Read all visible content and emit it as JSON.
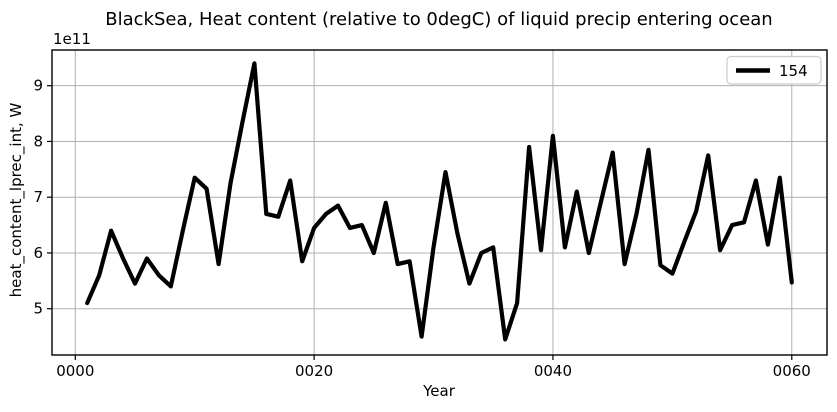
{
  "chart_data": {
    "type": "line",
    "title": "BlackSea, Heat content (relative to 0degC) of liquid precip entering ocean",
    "xlabel": "Year",
    "ylabel": "heat_content_lprec_int, W",
    "y_offset_label": "1e11",
    "y_unit_factor": 100000000000.0,
    "grid": true,
    "legend_position": "upper right",
    "xlim": [
      -1.95,
      62.95
    ],
    "ylim": [
      4.17,
      9.64
    ],
    "xticks": {
      "values": [
        0,
        20,
        40,
        60
      ],
      "labels": [
        "0000",
        "0020",
        "0040",
        "0060"
      ]
    },
    "yticks": {
      "values": [
        5,
        6,
        7,
        8,
        9
      ],
      "labels": [
        "5",
        "6",
        "7",
        "8",
        "9"
      ]
    },
    "style": {
      "line_color": "#000000",
      "grid_color": "#b0b0b0",
      "background_color": "#ffffff",
      "legend_border_color": "#cccccc"
    },
    "series": [
      {
        "name": "154",
        "x": [
          1,
          2,
          3,
          4,
          5,
          6,
          7,
          8,
          9,
          10,
          11,
          12,
          13,
          14,
          15,
          16,
          17,
          18,
          19,
          20,
          21,
          22,
          23,
          24,
          25,
          26,
          27,
          28,
          29,
          30,
          31,
          32,
          33,
          34,
          35,
          36,
          37,
          38,
          39,
          40,
          41,
          42,
          43,
          44,
          45,
          46,
          47,
          48,
          49,
          50,
          51,
          52,
          53,
          54,
          55,
          56,
          57,
          58,
          59,
          60
        ],
        "y": [
          5.1,
          5.6,
          6.4,
          5.9,
          5.45,
          5.9,
          5.6,
          5.4,
          6.4,
          7.35,
          7.15,
          5.8,
          7.25,
          8.35,
          9.4,
          6.7,
          6.65,
          7.3,
          5.85,
          6.45,
          6.7,
          6.85,
          6.45,
          6.5,
          6.0,
          6.9,
          5.8,
          5.85,
          4.5,
          6.1,
          7.45,
          6.35,
          5.45,
          6.0,
          6.1,
          4.45,
          5.1,
          7.9,
          6.05,
          8.1,
          6.1,
          7.1,
          6.0,
          6.9,
          7.8,
          5.8,
          6.7,
          7.85,
          5.78,
          5.63,
          6.2,
          6.75,
          7.75,
          6.05,
          6.5,
          6.55,
          7.3,
          6.15,
          7.35,
          5.47
        ]
      }
    ]
  }
}
